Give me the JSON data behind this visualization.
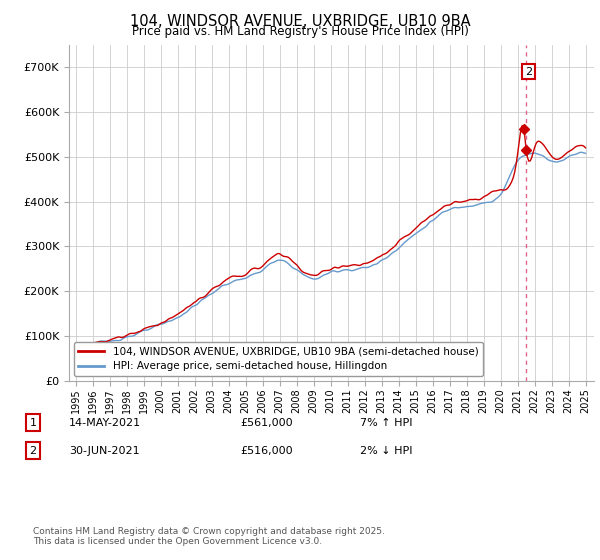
{
  "title": "104, WINDSOR AVENUE, UXBRIDGE, UB10 9BA",
  "subtitle": "Price paid vs. HM Land Registry's House Price Index (HPI)",
  "red_label": "104, WINDSOR AVENUE, UXBRIDGE, UB10 9BA (semi-detached house)",
  "blue_label": "HPI: Average price, semi-detached house, Hillingdon",
  "footnote": "Contains HM Land Registry data © Crown copyright and database right 2025.\nThis data is licensed under the Open Government Licence v3.0.",
  "transactions": [
    {
      "num": 1,
      "date": "14-MAY-2021",
      "price": "£561,000",
      "change": "7% ↑ HPI"
    },
    {
      "num": 2,
      "date": "30-JUN-2021",
      "price": "£516,000",
      "change": "2% ↓ HPI"
    }
  ],
  "point1_x": 2021.37,
  "point1_y": 561000,
  "point2_x": 2021.5,
  "point2_y": 516000,
  "red_color": "#cc0000",
  "blue_color": "#6699cc",
  "dashed_line_color": "#dd6688",
  "background_color": "#ffffff",
  "grid_color": "#cccccc",
  "ylim": [
    0,
    750000
  ],
  "xlim": [
    1994.6,
    2025.5
  ],
  "y_ticks": [
    0,
    100000,
    200000,
    300000,
    400000,
    500000,
    600000,
    700000
  ],
  "y_labels": [
    "£0",
    "£100K",
    "£200K",
    "£300K",
    "£400K",
    "£500K",
    "£600K",
    "£700K"
  ]
}
